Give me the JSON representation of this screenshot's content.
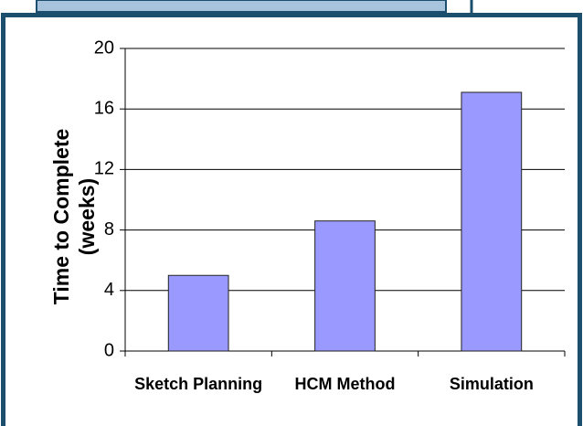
{
  "chart_data": {
    "type": "bar",
    "y_label": "Time to Complete (weeks)",
    "categories": [
      "Sketch Planning",
      "HCM Method",
      "Simulation"
    ],
    "values": [
      5,
      8.6,
      17.1
    ],
    "color": "#9999ff",
    "ylim": [
      0,
      20
    ],
    "yticks": [
      0,
      4,
      8,
      12,
      16,
      20
    ],
    "grid": true
  }
}
